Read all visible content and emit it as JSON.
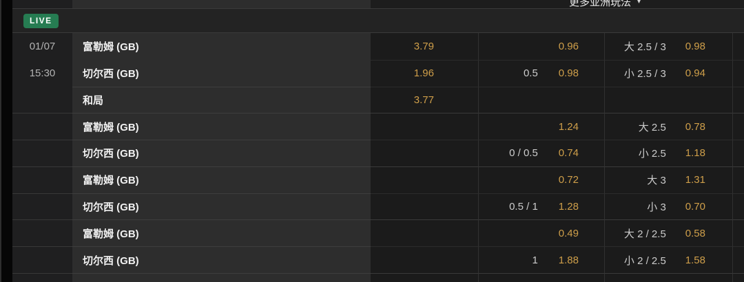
{
  "header": {
    "market_dropdown_label": "更多亚洲玩法",
    "caret": "▾"
  },
  "live": {
    "label": "LIVE"
  },
  "event": {
    "date": "01/07",
    "time": "15:30"
  },
  "colors": {
    "odds_text": "#cf9f4a",
    "live_badge_green": "#267c52",
    "handicap_text": "#cccccc"
  },
  "groups": [
    {
      "rows": [
        {
          "team": "富勒姆 (GB)",
          "odds_1x2": "3.79",
          "hcp": "",
          "hcp_odds": "0.96",
          "ou": "大 2.5 / 3",
          "ou_odds": "0.98"
        },
        {
          "team": "切尔西 (GB)",
          "odds_1x2": "1.96",
          "hcp": "0.5",
          "hcp_odds": "0.98",
          "ou": "小 2.5 / 3",
          "ou_odds": "0.94"
        },
        {
          "team": "和局",
          "odds_1x2": "3.77",
          "hcp": "",
          "hcp_odds": "",
          "ou": "",
          "ou_odds": ""
        }
      ]
    },
    {
      "rows": [
        {
          "team": "富勒姆 (GB)",
          "odds_1x2": "",
          "hcp": "",
          "hcp_odds": "1.24",
          "ou": "大 2.5",
          "ou_odds": "0.78"
        },
        {
          "team": "切尔西 (GB)",
          "odds_1x2": "",
          "hcp": "0 / 0.5",
          "hcp_odds": "0.74",
          "ou": "小 2.5",
          "ou_odds": "1.18"
        }
      ]
    },
    {
      "rows": [
        {
          "team": "富勒姆 (GB)",
          "odds_1x2": "",
          "hcp": "",
          "hcp_odds": "0.72",
          "ou": "大 3",
          "ou_odds": "1.31"
        },
        {
          "team": "切尔西 (GB)",
          "odds_1x2": "",
          "hcp": "0.5 / 1",
          "hcp_odds": "1.28",
          "ou": "小 3",
          "ou_odds": "0.70"
        }
      ]
    },
    {
      "rows": [
        {
          "team": "富勒姆 (GB)",
          "odds_1x2": "",
          "hcp": "",
          "hcp_odds": "0.49",
          "ou": "大 2 / 2.5",
          "ou_odds": "0.58"
        },
        {
          "team": "切尔西 (GB)",
          "odds_1x2": "",
          "hcp": "1",
          "hcp_odds": "1.88",
          "ou": "小 2 / 2.5",
          "ou_odds": "1.58"
        }
      ]
    }
  ]
}
